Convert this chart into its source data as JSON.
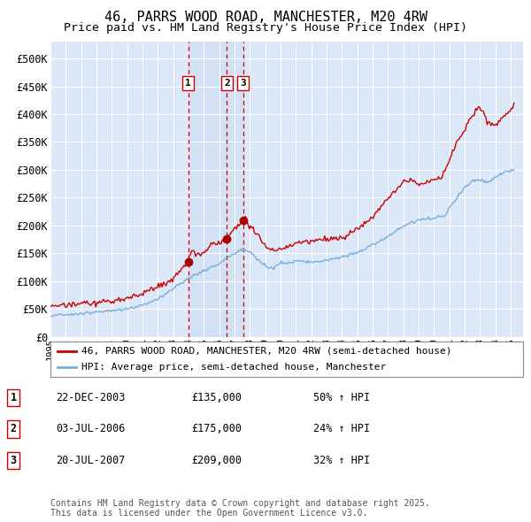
{
  "title": "46, PARRS WOOD ROAD, MANCHESTER, M20 4RW",
  "subtitle": "Price paid vs. HM Land Registry's House Price Index (HPI)",
  "ylabel_ticks": [
    "£0",
    "£50K",
    "£100K",
    "£150K",
    "£200K",
    "£250K",
    "£300K",
    "£350K",
    "£400K",
    "£450K",
    "£500K"
  ],
  "ytick_vals": [
    0,
    50000,
    100000,
    150000,
    200000,
    250000,
    300000,
    350000,
    400000,
    450000,
    500000
  ],
  "ylim": [
    0,
    530000
  ],
  "xlim_start": 1995.0,
  "xlim_end": 2025.8,
  "bg_color": "#dce8f7",
  "grid_color": "#c8d8ec",
  "red_line_color": "#cc0000",
  "blue_line_color": "#7aadda",
  "sale_marker_color": "#aa0000",
  "vline_color": "#cc0000",
  "sale_dates_year": [
    2003.97,
    2006.5,
    2007.55
  ],
  "sale_prices": [
    135000,
    175000,
    209000
  ],
  "sale_labels": [
    "1",
    "2",
    "3"
  ],
  "legend_red": "46, PARRS WOOD ROAD, MANCHESTER, M20 4RW (semi-detached house)",
  "legend_blue": "HPI: Average price, semi-detached house, Manchester",
  "table_rows": [
    [
      "1",
      "22-DEC-2003",
      "£135,000",
      "50% ↑ HPI"
    ],
    [
      "2",
      "03-JUL-2006",
      "£175,000",
      "24% ↑ HPI"
    ],
    [
      "3",
      "20-JUL-2007",
      "£209,000",
      "32% ↑ HPI"
    ]
  ],
  "footnote": "Contains HM Land Registry data © Crown copyright and database right 2025.\nThis data is licensed under the Open Government Licence v3.0.",
  "title_fontsize": 11,
  "subtitle_fontsize": 9.5,
  "tick_fontsize": 8.5,
  "legend_fontsize": 8,
  "table_fontsize": 8.5,
  "footnote_fontsize": 7
}
